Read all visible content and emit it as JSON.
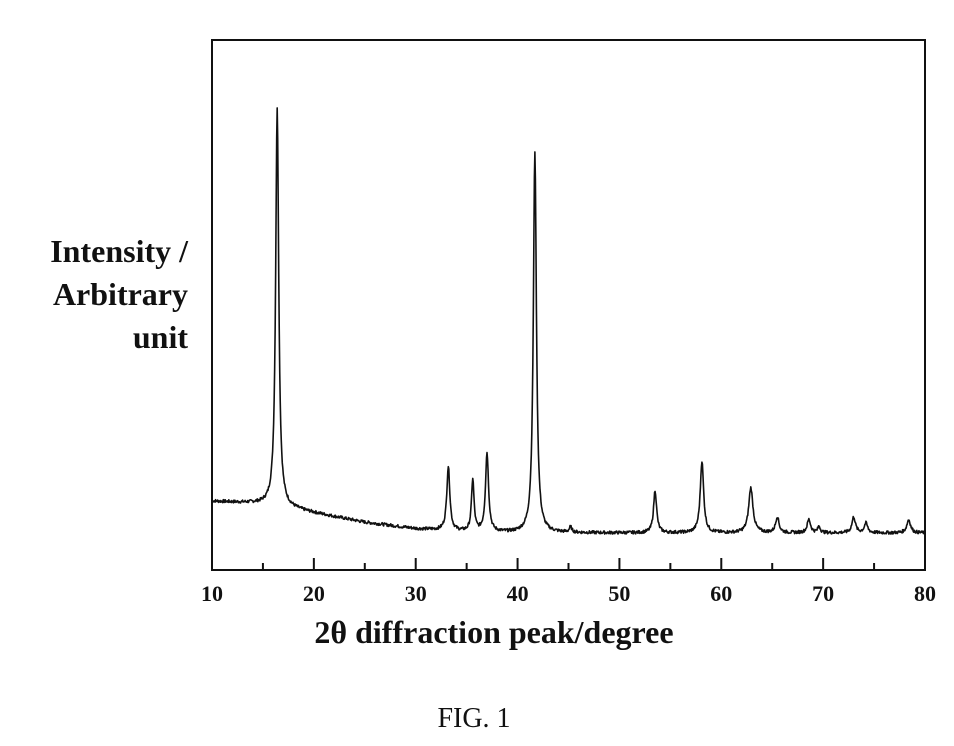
{
  "chart_data": {
    "type": "line",
    "title": "",
    "xlabel": "2θ diffraction peak/degree",
    "ylabel_lines": [
      "Intensity /",
      "Arbitrary",
      "unit"
    ],
    "xlim": [
      10,
      80
    ],
    "ylim": [
      0,
      100
    ],
    "x_ticks": [
      10,
      20,
      30,
      40,
      50,
      60,
      70,
      80
    ],
    "grid": false,
    "legend": "none",
    "line_color": "#111111",
    "baseline": [
      [
        10,
        13.0
      ],
      [
        14,
        12.6
      ],
      [
        16,
        12.2
      ],
      [
        20,
        10.8
      ],
      [
        25,
        9.0
      ],
      [
        30,
        7.8
      ],
      [
        35,
        7.2
      ],
      [
        40,
        7.0
      ],
      [
        45,
        7.0
      ],
      [
        50,
        7.0
      ],
      [
        55,
        7.0
      ],
      [
        60,
        7.0
      ],
      [
        65,
        7.0
      ],
      [
        70,
        7.0
      ],
      [
        75,
        7.0
      ],
      [
        80,
        7.0
      ]
    ],
    "peaks": [
      {
        "x": 16.4,
        "y": 87.0,
        "width": 0.18
      },
      {
        "x": 33.2,
        "y": 19.5,
        "width": 0.18
      },
      {
        "x": 35.6,
        "y": 17.0,
        "width": 0.15
      },
      {
        "x": 37.0,
        "y": 22.0,
        "width": 0.18
      },
      {
        "x": 41.7,
        "y": 79.0,
        "width": 0.18
      },
      {
        "x": 45.2,
        "y": 8.0,
        "width": 0.15
      },
      {
        "x": 53.5,
        "y": 15.0,
        "width": 0.18
      },
      {
        "x": 58.1,
        "y": 20.5,
        "width": 0.2
      },
      {
        "x": 62.9,
        "y": 15.5,
        "width": 0.25
      },
      {
        "x": 65.5,
        "y": 10.0,
        "width": 0.2
      },
      {
        "x": 68.6,
        "y": 9.5,
        "width": 0.2
      },
      {
        "x": 69.6,
        "y": 8.2,
        "width": 0.15
      },
      {
        "x": 73.0,
        "y": 10.0,
        "width": 0.2
      },
      {
        "x": 74.2,
        "y": 8.8,
        "width": 0.2
      },
      {
        "x": 78.4,
        "y": 9.5,
        "width": 0.22
      }
    ]
  },
  "caption": "FIG. 1"
}
